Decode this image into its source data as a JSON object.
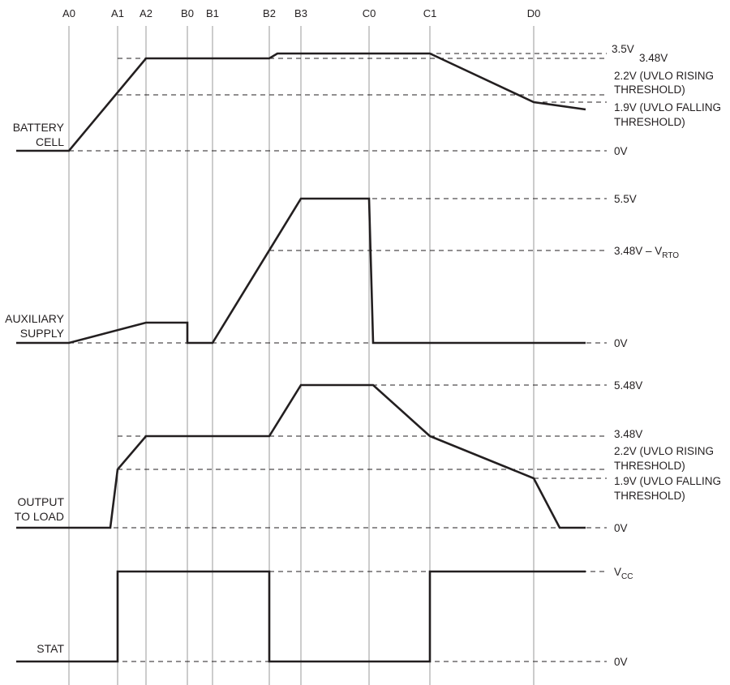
{
  "time_markers": [
    "A0",
    "A1",
    "A2",
    "B0",
    "B1",
    "B2",
    "B3",
    "C0",
    "C1",
    "D0"
  ],
  "signals": {
    "battery": {
      "label_line1": "BATTERY",
      "label_line2": "CELL",
      "levels": {
        "v3p5": "3.5V",
        "v3p48": "3.48V",
        "uvlo_rise_1": "2.2V (UVLO RISING",
        "uvlo_rise_2": "THRESHOLD)",
        "uvlo_fall_1": "1.9V (UVLO FALLING",
        "uvlo_fall_2": "THRESHOLD)",
        "zero": "0V"
      }
    },
    "auxiliary": {
      "label_line1": "AUXILIARY",
      "label_line2": "SUPPLY",
      "levels": {
        "v5p5": "5.5V",
        "rto_main": "3.48V – V",
        "rto_sub": "RTO",
        "zero": "0V"
      }
    },
    "output": {
      "label_line1": "OUTPUT",
      "label_line2": "TO LOAD",
      "levels": {
        "v5p48": "5.48V",
        "v3p48": "3.48V",
        "uvlo_rise_1": "2.2V (UVLO RISING",
        "uvlo_rise_2": "THRESHOLD)",
        "uvlo_fall_1": "1.9V (UVLO FALLING",
        "uvlo_fall_2": "THRESHOLD)",
        "zero": "0V"
      }
    },
    "stat": {
      "label": "STAT",
      "levels": {
        "vcc_main": "V",
        "vcc_sub": "CC",
        "zero": "0V"
      }
    }
  }
}
